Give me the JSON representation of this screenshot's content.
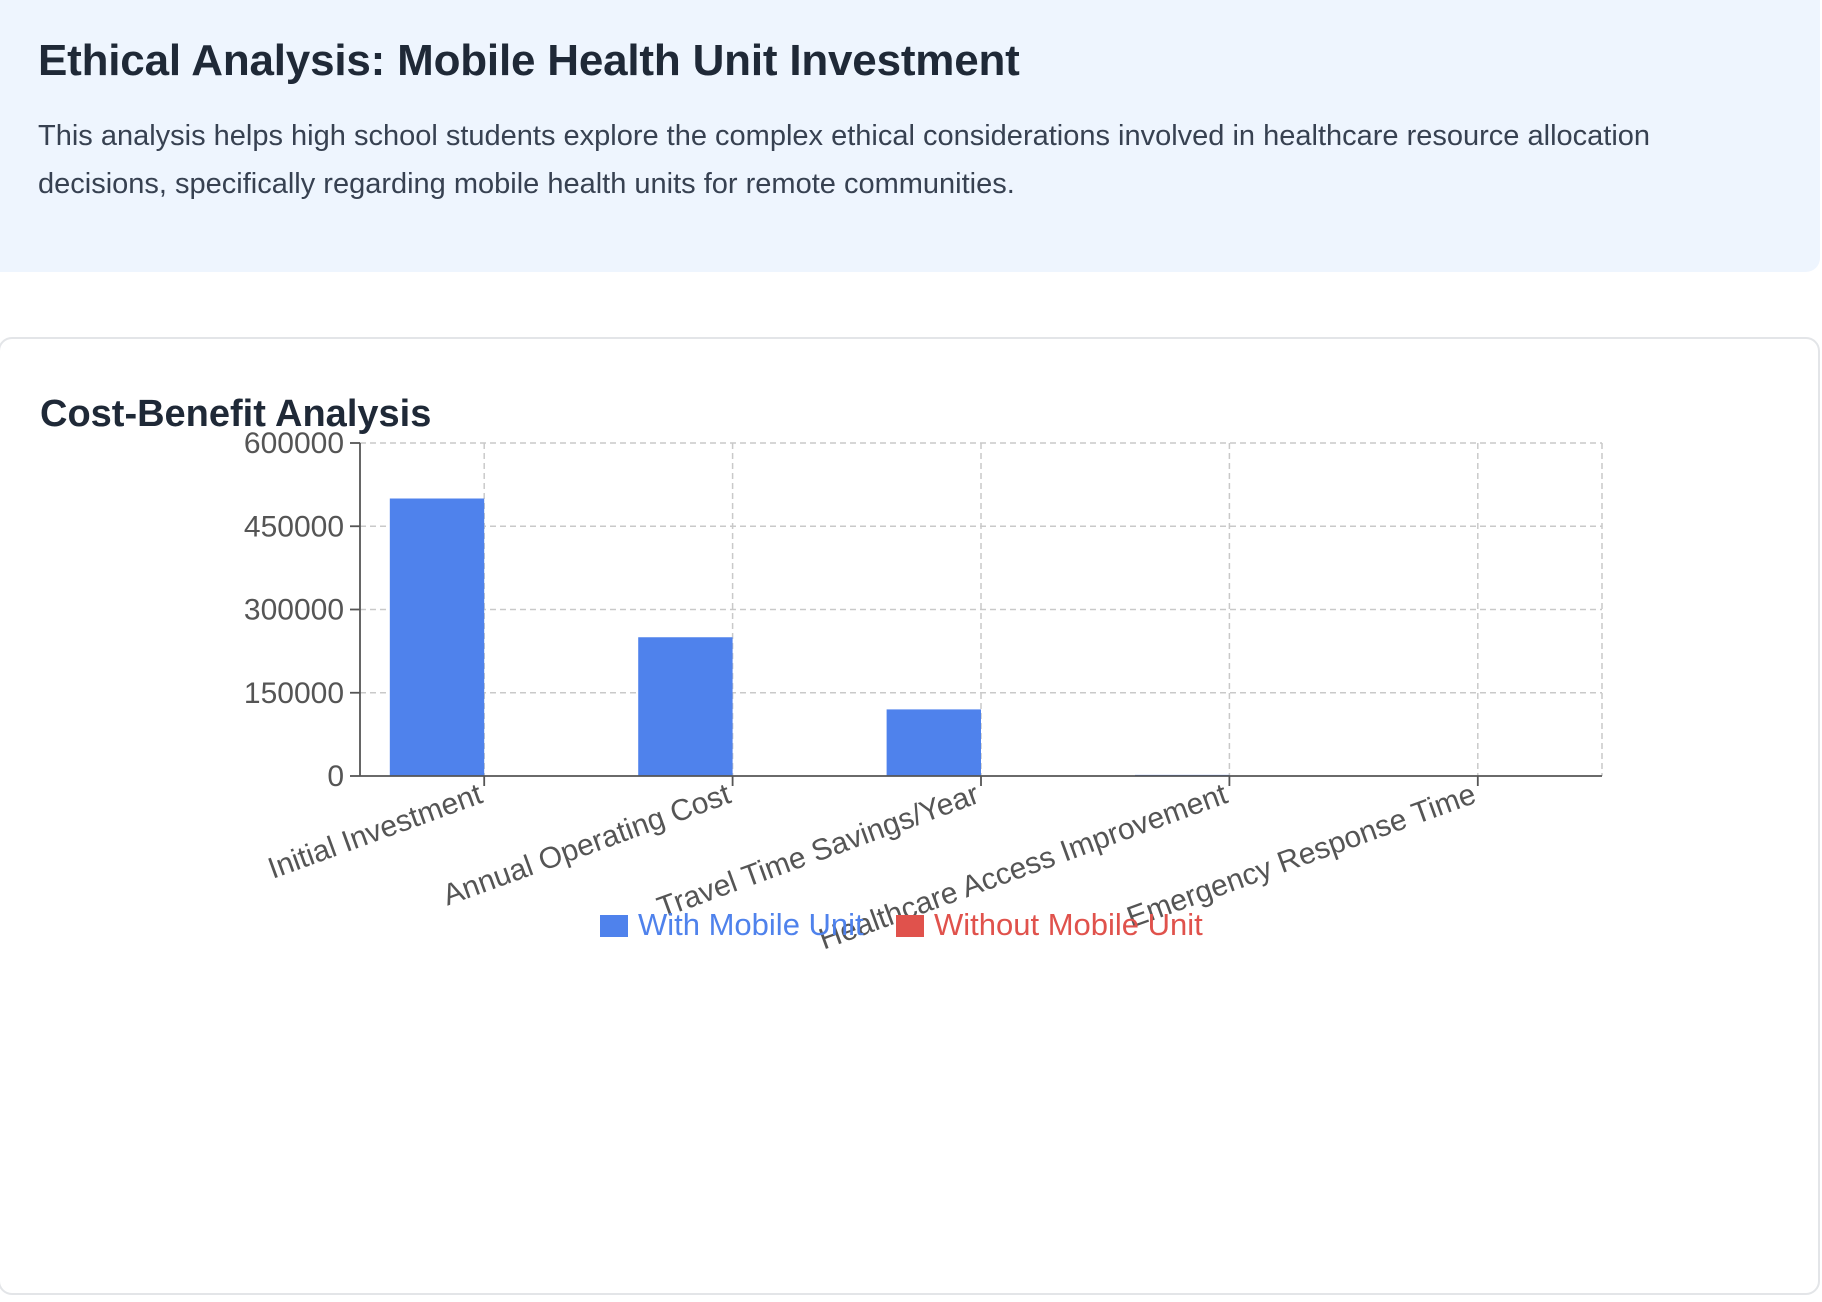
{
  "header": {
    "title": "Ethical Analysis: Mobile Health Unit Investment",
    "description": "This analysis helps high school students explore the complex ethical considerations involved in healthcare resource allocation decisions, specifically regarding mobile health units for remote communities."
  },
  "chart_card": {
    "heading": "Cost-Benefit Analysis"
  },
  "chart_data": {
    "type": "bar",
    "categories": [
      "Initial Investment",
      "Annual Operating Cost",
      "Travel Time Savings/Year",
      "Healthcare Access Improvement",
      "Emergency Response Time"
    ],
    "series": [
      {
        "name": "With Mobile Unit",
        "color": "#4f82ec",
        "values": [
          500000,
          250000,
          120000,
          2000,
          0
        ]
      },
      {
        "name": "Without Mobile Unit",
        "color": "#e0524c",
        "values": [
          0,
          0,
          0,
          0,
          0
        ]
      }
    ],
    "yticks": [
      0,
      150000,
      300000,
      450000,
      600000
    ],
    "ylim": [
      0,
      600000
    ],
    "grid": true,
    "grid_style": "dashed",
    "legend_position": "bottom-center",
    "xlabel": "",
    "ylabel": ""
  }
}
